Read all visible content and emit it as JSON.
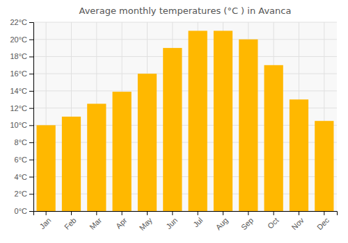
{
  "chart_data": {
    "type": "bar",
    "title": "Average monthly temperatures (°C ) in Avanca",
    "categories": [
      "Jan",
      "Feb",
      "Mar",
      "Apr",
      "May",
      "Jun",
      "Jul",
      "Aug",
      "Sep",
      "Oct",
      "Nov",
      "Dec"
    ],
    "values": [
      10.0,
      11.0,
      12.5,
      13.9,
      16.0,
      19.0,
      21.0,
      21.0,
      20.0,
      17.0,
      13.0,
      10.5
    ],
    "color": "#FFB800",
    "ylim": [
      0,
      22
    ],
    "yticks": [
      {
        "value": 0,
        "label": "0°C"
      },
      {
        "value": 2,
        "label": "2°C"
      },
      {
        "value": 4,
        "label": "4°C"
      },
      {
        "value": 6,
        "label": "6°C"
      },
      {
        "value": 8,
        "label": "8°C"
      },
      {
        "value": 10,
        "label": "10°C"
      },
      {
        "value": 12,
        "label": "12°C"
      },
      {
        "value": 14,
        "label": "14°C"
      },
      {
        "value": 16,
        "label": "16°C"
      },
      {
        "value": 18,
        "label": "18°C"
      },
      {
        "value": 20,
        "label": "20°C"
      },
      {
        "value": 22,
        "label": "22°C"
      }
    ],
    "grid": true
  }
}
